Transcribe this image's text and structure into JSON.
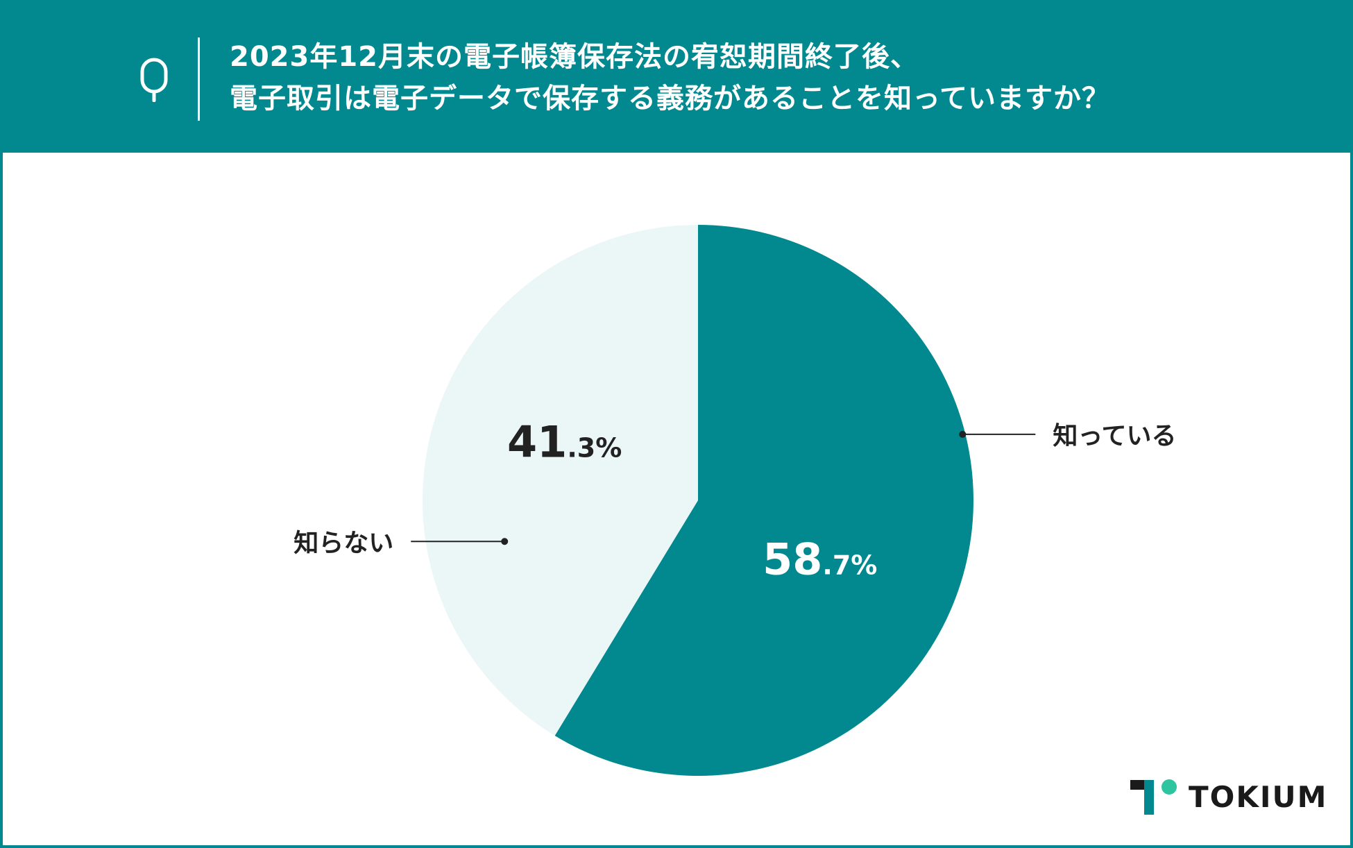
{
  "header": {
    "q_label": "Q",
    "title_line1": "2023年12月末の電子帳簿保存法の宥恕期間終了後、",
    "title_line2": "電子取引は電子データで保存する義務があることを知っていますか？"
  },
  "chart_data": {
    "type": "pie",
    "categories": [
      "知っている",
      "知らない"
    ],
    "values": [
      58.7,
      41.3
    ],
    "value_labels": [
      {
        "int": "58",
        "dec": ".7%"
      },
      {
        "int": "41",
        "dec": ".3%"
      }
    ],
    "colors": [
      "#01898f",
      "#ebf6f7"
    ],
    "label_colors": [
      "#ffffff",
      "#222222"
    ],
    "start_angle_deg": 0,
    "direction": "clockwise"
  },
  "logo": {
    "text": "TOKIUM",
    "colors": {
      "dark": "#1a1a1a",
      "teal": "#01898f",
      "green": "#2ec4a0"
    }
  }
}
